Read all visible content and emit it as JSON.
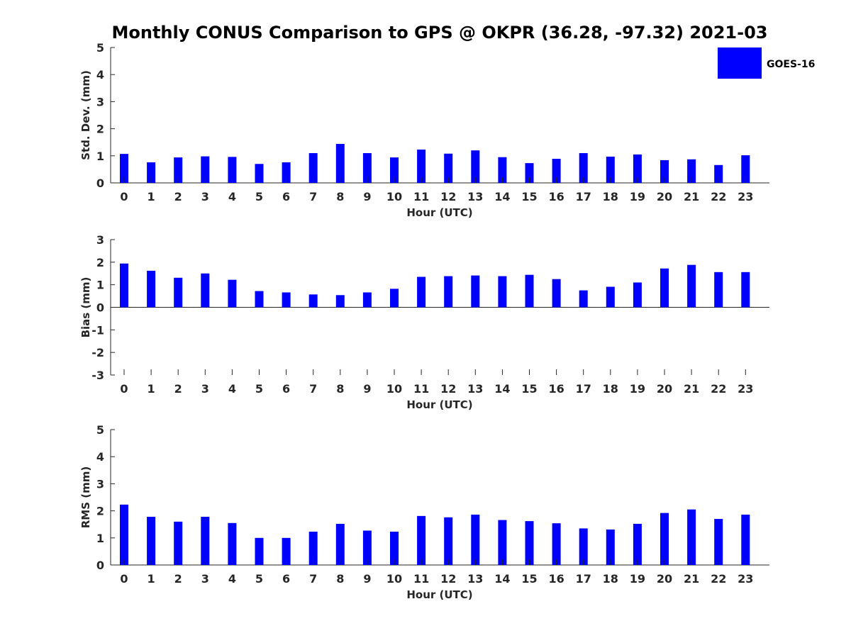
{
  "chart_data": {
    "type": "bar",
    "title": "Monthly CONUS Comparison to GPS @ OKPR (36.28, -97.32) 2021-03",
    "legend": {
      "entries": [
        "GOES-16"
      ],
      "placement": "top-right"
    },
    "series_color": "#0000ff",
    "categories": [
      0,
      1,
      2,
      3,
      4,
      5,
      6,
      7,
      8,
      9,
      10,
      11,
      12,
      13,
      14,
      15,
      16,
      17,
      18,
      19,
      20,
      21,
      22,
      23
    ],
    "panels": [
      {
        "xlabel": "Hour (UTC)",
        "ylabel": "Std. Dev. (mm)",
        "ylim": [
          0,
          5
        ],
        "yticks": [
          0,
          1,
          2,
          3,
          4,
          5
        ],
        "series": [
          {
            "name": "GOES-16",
            "values": [
              1.07,
              0.76,
              0.94,
              0.98,
              0.96,
              0.7,
              0.76,
              1.1,
              1.44,
              1.1,
              0.94,
              1.23,
              1.08,
              1.2,
              0.95,
              0.73,
              0.89,
              1.1,
              0.97,
              1.05,
              0.84,
              0.87,
              0.66,
              1.02
            ]
          }
        ]
      },
      {
        "xlabel": "Hour (UTC)",
        "ylabel": "Bias (mm)",
        "ylim": [
          -3,
          3
        ],
        "yticks": [
          -3,
          -2,
          -1,
          0,
          1,
          2,
          3
        ],
        "series": [
          {
            "name": "GOES-16",
            "values": [
              1.94,
              1.62,
              1.31,
              1.5,
              1.22,
              0.72,
              0.66,
              0.57,
              0.54,
              0.66,
              0.82,
              1.35,
              1.38,
              1.41,
              1.38,
              1.44,
              1.25,
              0.75,
              0.91,
              1.1,
              1.72,
              1.88,
              1.56,
              1.56
            ]
          }
        ]
      },
      {
        "xlabel": "Hour (UTC)",
        "ylabel": "RMS (mm)",
        "ylim": [
          0,
          5
        ],
        "yticks": [
          0,
          1,
          2,
          3,
          4,
          5
        ],
        "series": [
          {
            "name": "GOES-16",
            "values": [
              2.23,
              1.78,
              1.6,
              1.78,
              1.55,
              1.0,
              1.0,
              1.23,
              1.52,
              1.27,
              1.23,
              1.81,
              1.76,
              1.86,
              1.66,
              1.62,
              1.54,
              1.35,
              1.31,
              1.52,
              1.92,
              2.05,
              1.7,
              1.86
            ]
          }
        ]
      }
    ]
  }
}
